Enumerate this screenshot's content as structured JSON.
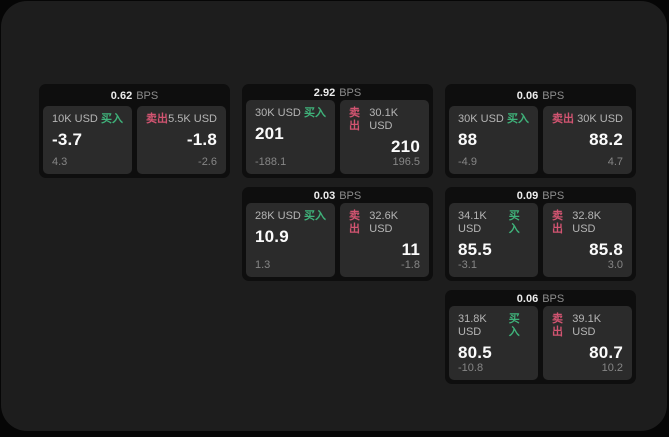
{
  "labels": {
    "bps_unit": "BPS",
    "buy": "买入",
    "sell": "卖出"
  },
  "colors": {
    "buy_accent": "#3fb27a",
    "sell_accent": "#d25471",
    "window_bg": "#1d1d1d",
    "card_bg": "#0e0e0e",
    "panel_bg": "#2b2b2b"
  },
  "cards": [
    {
      "bps": "0.62",
      "buy": {
        "amount": "10K USD",
        "value": "-3.7",
        "delta": "4.3"
      },
      "sell": {
        "amount": "5.5K USD",
        "value": "-1.8",
        "delta": "-2.6"
      }
    },
    {
      "bps": "2.92",
      "buy": {
        "amount": "30K USD",
        "value": "201",
        "delta": "-188.1"
      },
      "sell": {
        "amount": "30.1K USD",
        "value": "210",
        "delta": "196.5"
      }
    },
    {
      "bps": "0.06",
      "buy": {
        "amount": "30K USD",
        "value": "88",
        "delta": "-4.9"
      },
      "sell": {
        "amount": "30K USD",
        "value": "88.2",
        "delta": "4.7"
      }
    },
    {
      "bps": "0.03",
      "buy": {
        "amount": "28K USD",
        "value": "10.9",
        "delta": "1.3"
      },
      "sell": {
        "amount": "32.6K USD",
        "value": "11",
        "delta": "-1.8"
      }
    },
    {
      "bps": "0.09",
      "buy": {
        "amount": "34.1K USD",
        "value": "85.5",
        "delta": "-3.1"
      },
      "sell": {
        "amount": "32.8K USD",
        "value": "85.8",
        "delta": "3.0"
      }
    },
    {
      "bps": "0.06",
      "buy": {
        "amount": "31.8K USD",
        "value": "80.5",
        "delta": "-10.8"
      },
      "sell": {
        "amount": "39.1K USD",
        "value": "80.7",
        "delta": "10.2"
      }
    }
  ]
}
